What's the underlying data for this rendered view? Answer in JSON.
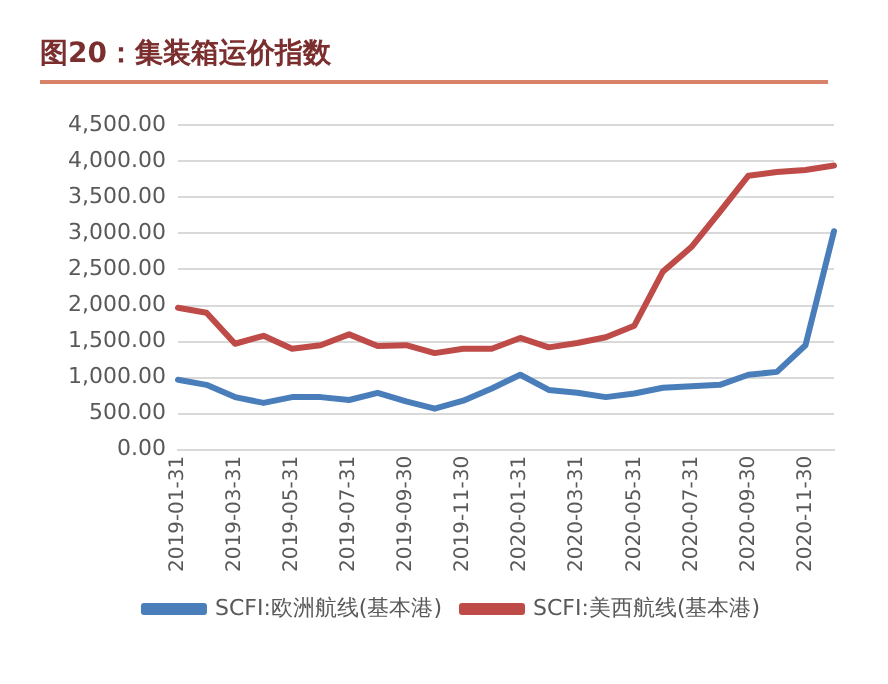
{
  "chart_data": {
    "type": "line",
    "title": "图20：集装箱运价指数",
    "categories": [
      "2019-01-31",
      null,
      "2019-03-31",
      null,
      "2019-05-31",
      null,
      "2019-07-31",
      null,
      "2019-09-30",
      null,
      "2019-11-30",
      null,
      "2020-01-31",
      null,
      "2020-03-31",
      null,
      "2020-05-31",
      null,
      "2020-07-31",
      null,
      "2020-09-30",
      null,
      "2020-11-30",
      null
    ],
    "series": [
      {
        "name": "SCFI:欧洲航线(基本港)",
        "color": "#4a7ebb",
        "values": [
          970,
          900,
          730,
          650,
          730,
          730,
          690,
          790,
          670,
          570,
          680,
          850,
          1040,
          830,
          790,
          730,
          780,
          860,
          880,
          900,
          1040,
          1080,
          1450,
          3030
        ]
      },
      {
        "name": "SCFI:美西航线(基本港)",
        "color": "#be4b48",
        "values": [
          1970,
          1900,
          1470,
          1580,
          1400,
          1450,
          1600,
          1440,
          1450,
          1340,
          1400,
          1400,
          1550,
          1420,
          1480,
          1560,
          1720,
          2470,
          2810,
          3300,
          3800,
          3850,
          3880,
          3940
        ]
      }
    ],
    "ylim": [
      0,
      4500
    ],
    "yticks": [
      {
        "value": 0,
        "label": "0.00"
      },
      {
        "value": 500,
        "label": "500.00"
      },
      {
        "value": 1000,
        "label": "1,000.00"
      },
      {
        "value": 1500,
        "label": "1,500.00"
      },
      {
        "value": 2000,
        "label": "2,000.00"
      },
      {
        "value": 2500,
        "label": "2,500.00"
      },
      {
        "value": 3000,
        "label": "3,000.00"
      },
      {
        "value": 3500,
        "label": "3,500.00"
      },
      {
        "value": 4000,
        "label": "4,000.00"
      },
      {
        "value": 4500,
        "label": "4,500.00"
      }
    ],
    "grid": "y",
    "legend": "bottom",
    "marker": "none",
    "line_style": "solid"
  }
}
